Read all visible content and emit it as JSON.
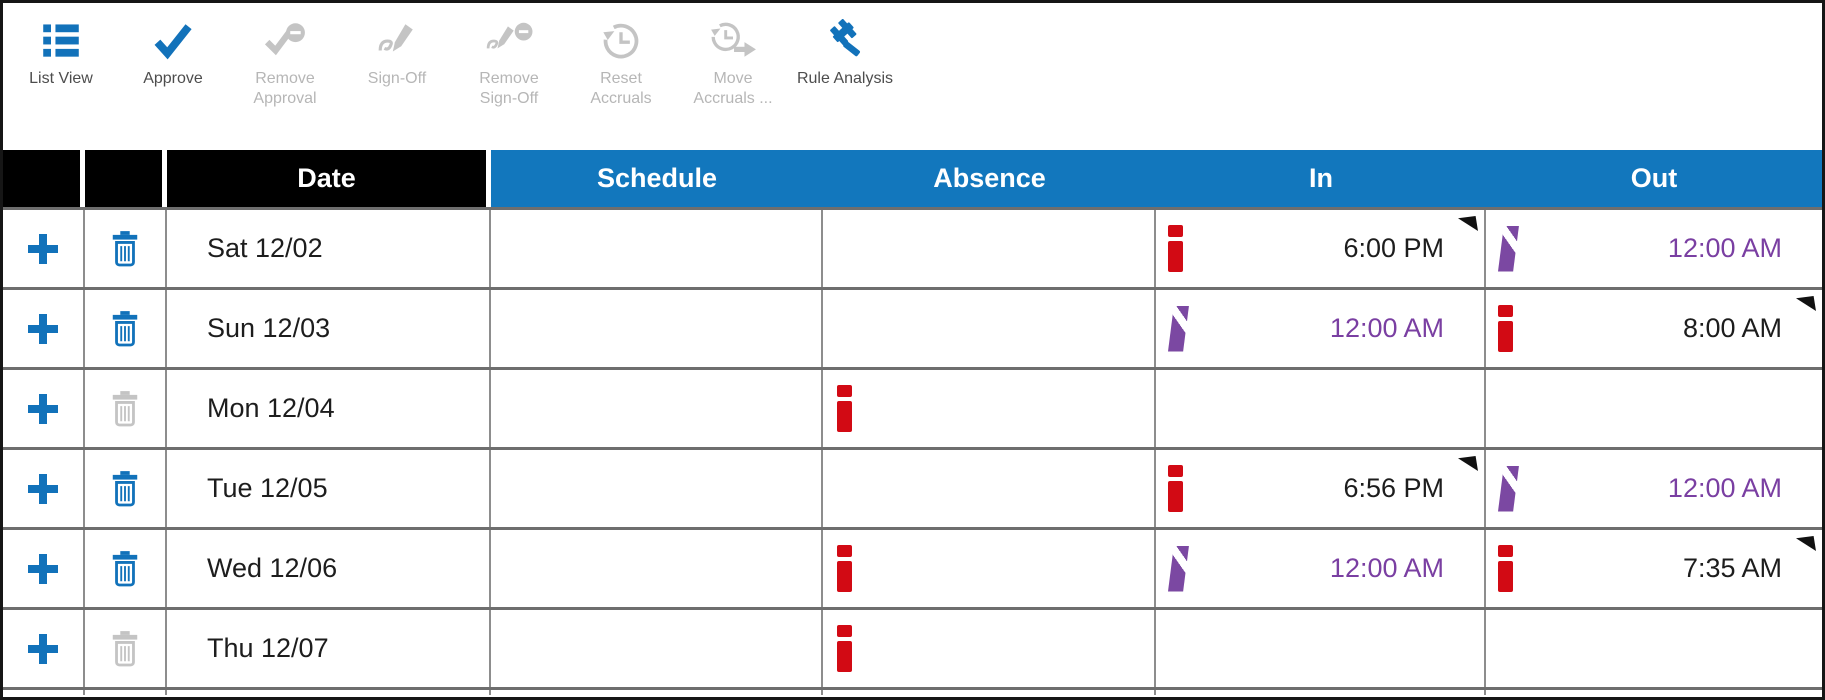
{
  "toolbar": {
    "items": [
      {
        "label": "List View",
        "icon": "list-view-icon",
        "enabled": true
      },
      {
        "label": "Approve",
        "icon": "approve-check-icon",
        "enabled": true
      },
      {
        "label": "Remove Approval",
        "icon": "remove-approval-icon",
        "enabled": false
      },
      {
        "label": "Sign-Off",
        "icon": "sign-off-icon",
        "enabled": false
      },
      {
        "label": "Remove Sign-Off",
        "icon": "remove-sign-off-icon",
        "enabled": false
      },
      {
        "label": "Reset Accruals",
        "icon": "reset-accruals-icon",
        "enabled": false
      },
      {
        "label": "Move Accruals ...",
        "icon": "move-accruals-icon",
        "enabled": false
      },
      {
        "label": "Rule Analysis",
        "icon": "rule-analysis-icon",
        "enabled": true
      }
    ]
  },
  "table": {
    "columns": [
      {
        "key": "add",
        "label": ""
      },
      {
        "key": "delete",
        "label": ""
      },
      {
        "key": "date",
        "label": "Date"
      },
      {
        "key": "schedule",
        "label": "Schedule"
      },
      {
        "key": "absence",
        "label": "Absence"
      },
      {
        "key": "in",
        "label": "In"
      },
      {
        "key": "out",
        "label": "Out"
      }
    ],
    "rows": [
      {
        "date": "Sat 12/02",
        "can_add": true,
        "can_delete": true,
        "schedule": "",
        "absence_exception": false,
        "in": {
          "time": "6:00 PM",
          "icon": "exception",
          "time_color": "default",
          "note": true
        },
        "out": {
          "time": "12:00 AM",
          "icon": "phantom",
          "time_color": "purple",
          "note": false
        }
      },
      {
        "date": "Sun 12/03",
        "can_add": true,
        "can_delete": true,
        "schedule": "",
        "absence_exception": false,
        "in": {
          "time": "12:00 AM",
          "icon": "phantom",
          "time_color": "purple",
          "note": false
        },
        "out": {
          "time": "8:00 AM",
          "icon": "exception",
          "time_color": "default",
          "note": true
        }
      },
      {
        "date": "Mon 12/04",
        "can_add": true,
        "can_delete": false,
        "schedule": "",
        "absence_exception": true,
        "in": null,
        "out": null
      },
      {
        "date": "Tue 12/05",
        "can_add": true,
        "can_delete": true,
        "schedule": "",
        "absence_exception": false,
        "in": {
          "time": "6:56 PM",
          "icon": "exception",
          "time_color": "default",
          "note": true
        },
        "out": {
          "time": "12:00 AM",
          "icon": "phantom",
          "time_color": "purple",
          "note": false
        }
      },
      {
        "date": "Wed 12/06",
        "can_add": true,
        "can_delete": true,
        "schedule": "",
        "absence_exception": true,
        "in": {
          "time": "12:00 AM",
          "icon": "phantom",
          "time_color": "purple",
          "note": false
        },
        "out": {
          "time": "7:35 AM",
          "icon": "exception",
          "time_color": "default",
          "note": true
        }
      },
      {
        "date": "Thu 12/07",
        "can_add": true,
        "can_delete": false,
        "schedule": "",
        "absence_exception": true,
        "in": null,
        "out": null
      }
    ]
  },
  "colors": {
    "accent_blue": "#1272ba",
    "header_blue": "#1277bd",
    "header_black": "#000000",
    "exception_red": "#d20a14",
    "phantom_purple": "#7b48a2",
    "purple_text": "#7a3fa2",
    "disabled_gray": "#c4c4c4",
    "row_divider": "#6e6e6e",
    "column_divider": "#8d8d8d"
  }
}
